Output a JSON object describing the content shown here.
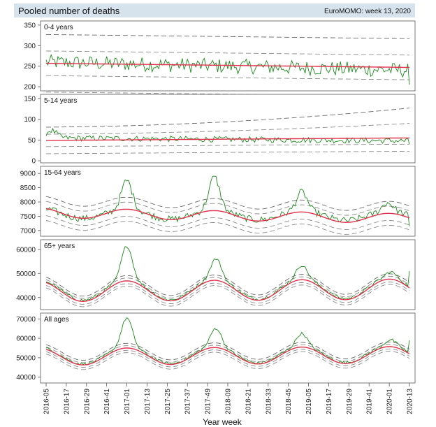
{
  "header": {
    "title": "Pooled number of deaths",
    "source": "EuroMOMO: week 13, 2020"
  },
  "colors": {
    "header_bg": "#d6e3ec",
    "observed": "#1a8a1a",
    "baseline": "#e0304a",
    "bands": "#8a8a8a",
    "frame": "#555555"
  },
  "xaxis": {
    "label": "Year week",
    "ticks": [
      "2016-05",
      "2016-17",
      "2016-29",
      "2016-41",
      "2017-01",
      "2017-13",
      "2017-25",
      "2017-37",
      "2017-49",
      "2018-09",
      "2018-21",
      "2018-33",
      "2018-45",
      "2019-05",
      "2019-17",
      "2019-29",
      "2019-41",
      "2020-01",
      "2020-13"
    ]
  },
  "chart_data": [
    {
      "type": "line",
      "title": "0-4 years",
      "ylim": [
        190,
        360
      ],
      "yticks": [
        200,
        250,
        300,
        350
      ],
      "x_range": [
        0,
        216
      ],
      "baseline": {
        "start": 257,
        "end": 247,
        "amp": 0
      },
      "bands": {
        "inner": 30,
        "outer": 70
      },
      "observed": {
        "start": 260,
        "end": 240,
        "noise": 18,
        "peaks": [],
        "last": 205
      },
      "series": [
        {
          "name": "",
          "role": "observed"
        },
        {
          "name": "",
          "role": "baseline"
        }
      ]
    },
    {
      "type": "line",
      "title": "5-14 years",
      "ylim": [
        -5,
        160
      ],
      "yticks": [
        0,
        50,
        100,
        150
      ],
      "x_range": [
        0,
        216
      ],
      "baseline": {
        "start": 49,
        "end": 55,
        "amp": 0
      },
      "bands": {
        "inner": 15,
        "outer": 32,
        "grow": 40
      },
      "observed": {
        "start": 55,
        "end": 48,
        "noise": 7,
        "peaks": [
          [
            3,
            18
          ]
        ],
        "last": 40
      },
      "series": [
        {
          "name": "",
          "role": "observed"
        },
        {
          "name": "",
          "role": "baseline"
        }
      ]
    },
    {
      "type": "line",
      "title": "15-64 years",
      "ylim": [
        6800,
        9250
      ],
      "yticks": [
        7000,
        7500,
        8000,
        8500,
        9000
      ],
      "x_range": [
        0,
        216
      ],
      "baseline": {
        "start": 7620,
        "end": 7420,
        "amp": 170
      },
      "bands": {
        "inner": 250,
        "outer": 420
      },
      "observed": {
        "start": 7600,
        "end": 7500,
        "noise": 120,
        "peaks": [
          [
            48,
            1000
          ],
          [
            100,
            1150
          ],
          [
            152,
            650
          ],
          [
            203,
            300
          ]
        ],
        "last": 7150
      },
      "series": [
        {
          "name": "",
          "role": "observed"
        },
        {
          "name": "",
          "role": "baseline"
        }
      ]
    },
    {
      "type": "line",
      "title": "65+ years",
      "ylim": [
        35000,
        64000
      ],
      "yticks": [
        40000,
        50000,
        60000
      ],
      "x_range": [
        0,
        216
      ],
      "baseline": {
        "start": 42500,
        "end": 43500,
        "amp": 4200
      },
      "bands": {
        "inner": 1200,
        "outer": 2200
      },
      "observed": {
        "start": 43000,
        "end": 44000,
        "noise": 600,
        "peaks": [
          [
            48,
            14000
          ],
          [
            101,
            8500
          ],
          [
            152,
            5500
          ],
          [
            205,
            2500
          ]
        ],
        "last": 51000
      },
      "series": [
        {
          "name": "",
          "role": "observed"
        },
        {
          "name": "",
          "role": "baseline"
        }
      ]
    },
    {
      "type": "line",
      "title": "All ages",
      "ylim": [
        37000,
        73000
      ],
      "yticks": [
        40000,
        50000,
        60000,
        70000
      ],
      "x_range": [
        0,
        216
      ],
      "baseline": {
        "start": 50500,
        "end": 51500,
        "amp": 4300
      },
      "bands": {
        "inner": 1200,
        "outer": 2400
      },
      "observed": {
        "start": 51000,
        "end": 52000,
        "noise": 700,
        "peaks": [
          [
            48,
            15000
          ],
          [
            101,
            9500
          ],
          [
            152,
            6500
          ],
          [
            205,
            3000
          ]
        ],
        "last": 59000
      },
      "series": [
        {
          "name": "",
          "role": "observed"
        },
        {
          "name": "",
          "role": "baseline"
        }
      ]
    }
  ]
}
